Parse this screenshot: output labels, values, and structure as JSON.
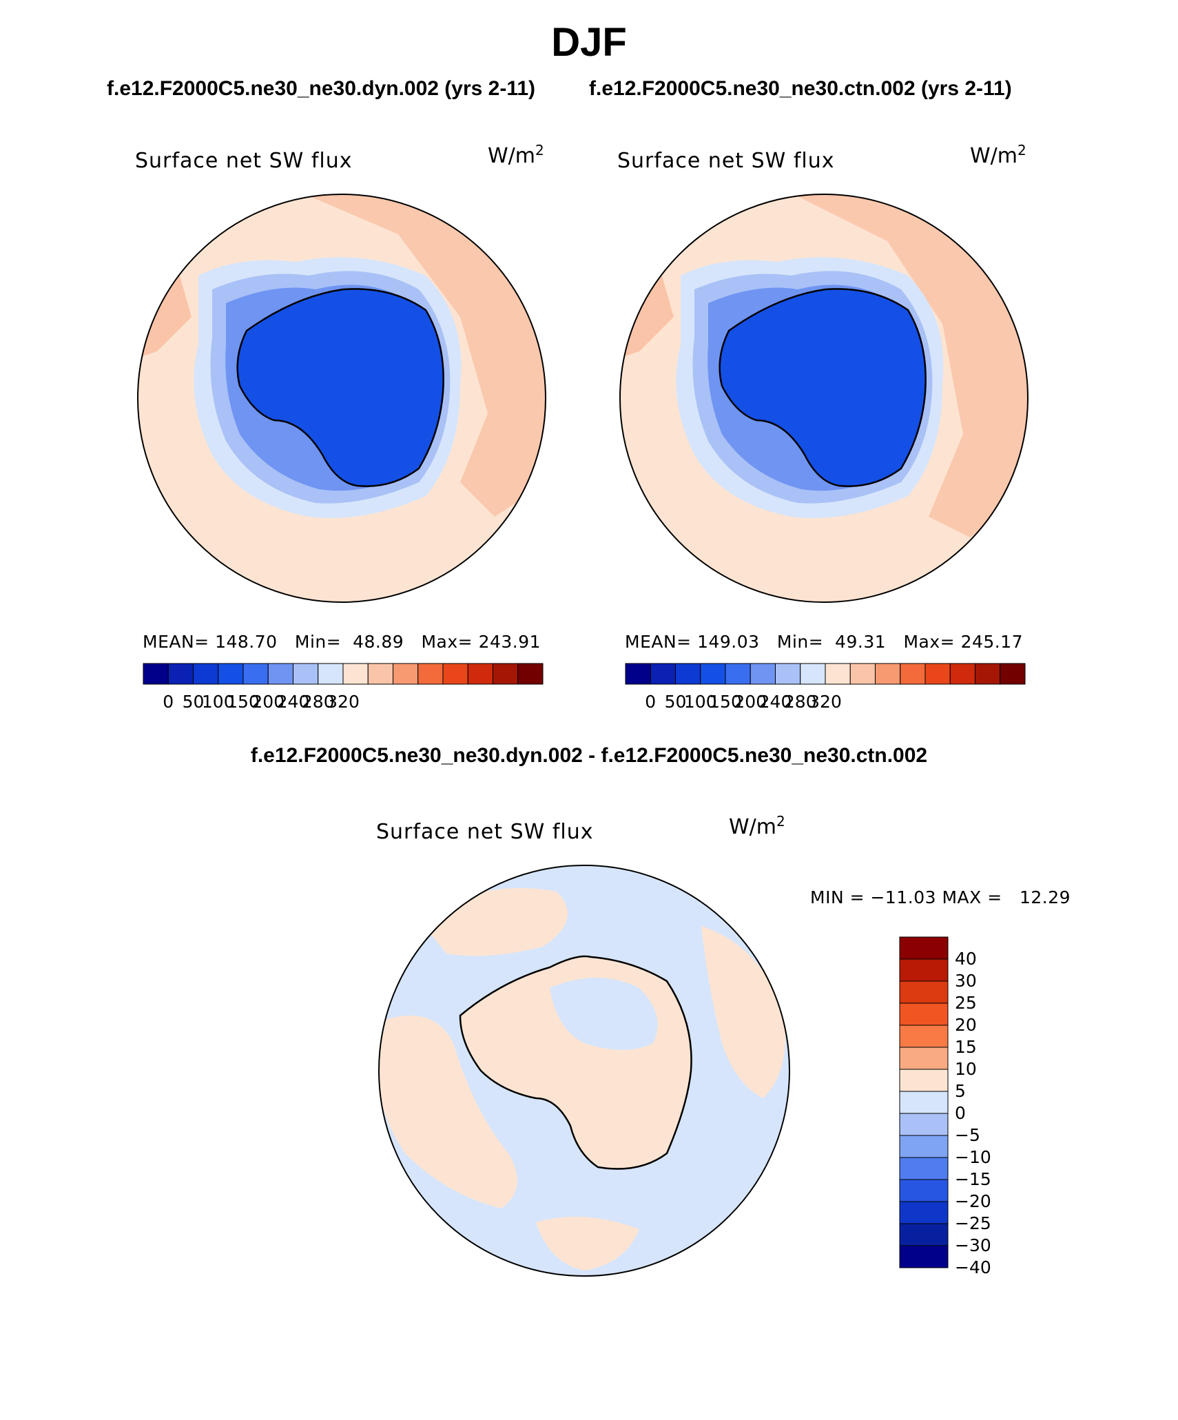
{
  "title": "DJF",
  "case_titles": {
    "top_left": "f.e12.F2000C5.ne30_ne30.dyn.002 (yrs 2-11)",
    "top_right": "f.e12.F2000C5.ne30_ne30.ctn.002 (yrs 2-11)",
    "difference": "f.e12.F2000C5.ne30_ne30.dyn.002 - f.e12.F2000C5.ne30_ne30.ctn.002"
  },
  "panels": [
    {
      "variable": "Surface net SW flux",
      "units_base": "W/m",
      "units_exp": "2",
      "stats_text": "MEAN= 148.70   Min=  48.89   Max= 243.91"
    },
    {
      "variable": "Surface net SW flux",
      "units_base": "W/m",
      "units_exp": "2",
      "stats_text": "MEAN= 149.03   Min=  49.31   Max= 245.17"
    },
    {
      "variable": "Surface net SW flux",
      "units_base": "W/m",
      "units_exp": "2",
      "stats_text": "MIN = −11.03 MAX =   12.29"
    }
  ],
  "colorbar_main": {
    "colors": [
      "#00008b",
      "#0a21b4",
      "#0d3ad2",
      "#1450e6",
      "#3a6ef0",
      "#6f94f2",
      "#a9c1f6",
      "#d6e5fb",
      "#fde4d2",
      "#fac4a8",
      "#f79a72",
      "#f36b3b",
      "#e9471a",
      "#cf2a0b",
      "#a51605",
      "#730000"
    ],
    "tick_labels": [
      "0",
      "50",
      "100",
      "150",
      "200",
      "240",
      "280",
      "320"
    ]
  },
  "colorbar_diff": {
    "colors": [
      "#8b0000",
      "#b81a06",
      "#dc3a10",
      "#f05522",
      "#f87b45",
      "#f9aa82",
      "#fde4d2",
      "#d6e5fb",
      "#a9c1f6",
      "#7ea4f3",
      "#4f7cee",
      "#2757e2",
      "#0e37c9",
      "#07209f",
      "#00008b"
    ],
    "tick_labels": [
      "40",
      "30",
      "25",
      "20",
      "15",
      "10",
      "5",
      "0",
      "−5",
      "−10",
      "−15",
      "−20",
      "−25",
      "−30",
      "−40"
    ]
  },
  "map_colors": {
    "ocean_warm": "#fde4d2",
    "ocean_warmer": "#fac4a8",
    "ice_light": "#d6e5fb",
    "ice_mid": "#a9c1f6",
    "ice_shelf": "#6f94f2",
    "continent": "#1450e6",
    "diff_negative": "#d6e5fb",
    "diff_positive": "#fde4d2"
  }
}
